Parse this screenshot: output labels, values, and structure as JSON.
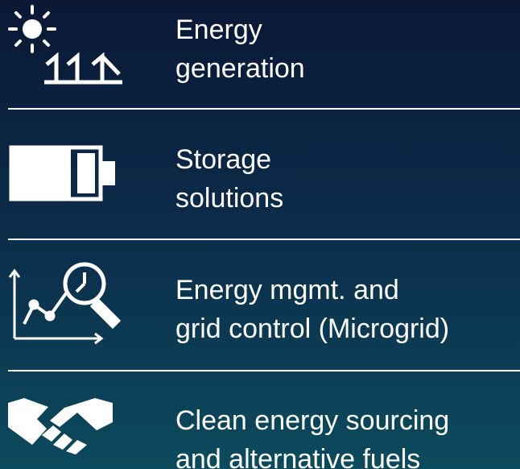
{
  "items": [
    {
      "lines": [
        "Energy",
        "generation"
      ]
    },
    {
      "lines": [
        "Storage",
        "solutions"
      ]
    },
    {
      "lines": [
        "Energy mgmt. and",
        "grid control (Microgrid)"
      ]
    },
    {
      "lines": [
        "Clean energy sourcing",
        "and alternative fuels"
      ]
    }
  ]
}
